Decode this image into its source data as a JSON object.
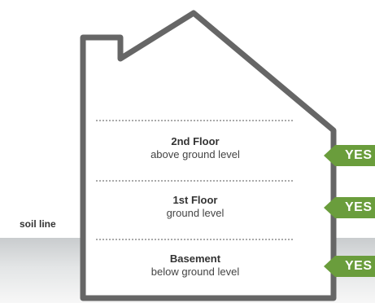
{
  "soil_line_label": "soil line",
  "floors": [
    {
      "name": "2nd Floor",
      "description": "above ground level",
      "badge": "YES"
    },
    {
      "name": "1st Floor",
      "description": "ground level",
      "badge": "YES"
    },
    {
      "name": "Basement",
      "description": "below ground level",
      "badge": "YES"
    }
  ],
  "colors": {
    "house_outline": "#666666",
    "badge_green": "#6a9d3c",
    "divider": "#555555",
    "ground": "#d4d7d8"
  }
}
